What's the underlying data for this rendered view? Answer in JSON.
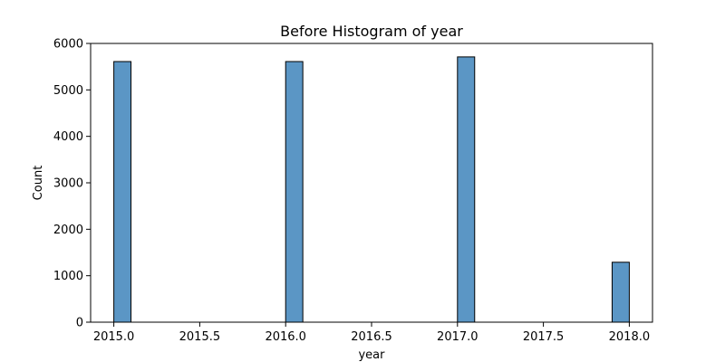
{
  "chart_data": {
    "type": "bar",
    "title": "Before Histogram of year",
    "xlabel": "year",
    "ylabel": "Count",
    "bins": [
      {
        "x_start": 2015.0,
        "x_end": 2015.1,
        "count": 5610
      },
      {
        "x_start": 2016.0,
        "x_end": 2016.1,
        "count": 5610
      },
      {
        "x_start": 2017.0,
        "x_end": 2017.1,
        "count": 5710
      },
      {
        "x_start": 2017.9,
        "x_end": 2018.0,
        "count": 1290
      }
    ],
    "xlim": [
      2014.865,
      2018.135
    ],
    "ylim": [
      0,
      6000
    ],
    "xticks": [
      2015.0,
      2015.5,
      2016.0,
      2016.5,
      2017.0,
      2017.5,
      2018.0
    ],
    "xtick_labels": [
      "2015.0",
      "2015.5",
      "2016.0",
      "2016.5",
      "2017.0",
      "2017.5",
      "2018.0"
    ],
    "yticks": [
      0,
      1000,
      2000,
      3000,
      4000,
      5000,
      6000
    ],
    "ytick_labels": [
      "0",
      "1000",
      "2000",
      "3000",
      "4000",
      "5000",
      "6000"
    ],
    "grid": false,
    "colors": {
      "bar_fill": "#5b96c5",
      "bar_edge": "#000000",
      "axis": "#000000"
    }
  }
}
